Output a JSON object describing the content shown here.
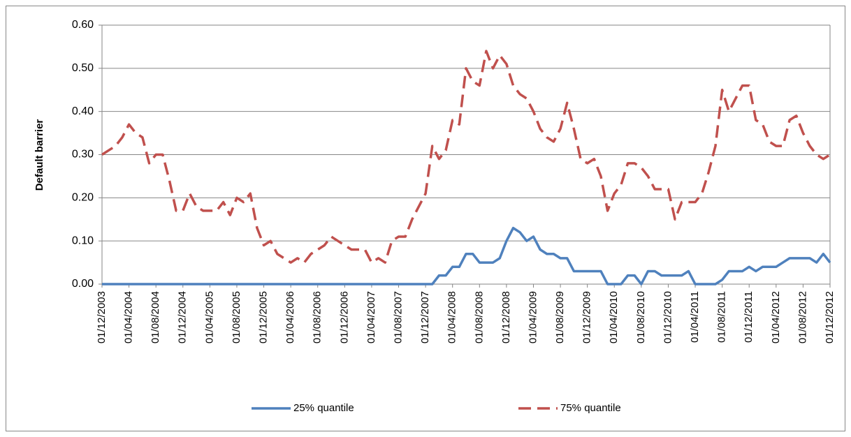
{
  "chart_data": {
    "type": "line",
    "y_label": "Default barrier",
    "categories": [
      "01/12/2003",
      null,
      null,
      null,
      "01/04/2004",
      null,
      null,
      null,
      "01/08/2004",
      null,
      null,
      null,
      "01/12/2004",
      null,
      null,
      null,
      "01/04/2005",
      null,
      null,
      null,
      "01/08/2005",
      null,
      null,
      null,
      "01/12/2005",
      null,
      null,
      null,
      "01/04/2006",
      null,
      null,
      null,
      "01/08/2006",
      null,
      null,
      null,
      "01/12/2006",
      null,
      null,
      null,
      "01/04/2007",
      null,
      null,
      null,
      "01/08/2007",
      null,
      null,
      null,
      "01/12/2007",
      null,
      null,
      null,
      "01/04/2008",
      null,
      null,
      null,
      "01/08/2008",
      null,
      null,
      null,
      "01/12/2008",
      null,
      null,
      null,
      "01/04/2009",
      null,
      null,
      null,
      "01/08/2009",
      null,
      null,
      null,
      "01/12/2009",
      null,
      null,
      null,
      "01/04/2010",
      null,
      null,
      null,
      "01/08/2010",
      null,
      null,
      null,
      "01/12/2010",
      null,
      null,
      null,
      "01/04/2011",
      null,
      null,
      null,
      "01/08/2011",
      null,
      null,
      null,
      "01/12/2011",
      null,
      null,
      null,
      "01/04/2012",
      null,
      null,
      null,
      "01/08/2012",
      null,
      null,
      null,
      "01/12/2012"
    ],
    "series": [
      {
        "name": "25% quantile",
        "color": "#4f81bd",
        "dash": false,
        "values": [
          0,
          0,
          0,
          0,
          0,
          0,
          0,
          0,
          0,
          0,
          0,
          0,
          0,
          0,
          0,
          0,
          0,
          0,
          0,
          0,
          0,
          0,
          0,
          0,
          0,
          0,
          0,
          0,
          0,
          0,
          0,
          0,
          0,
          0,
          0,
          0,
          0,
          0,
          0,
          0,
          0,
          0,
          0,
          0,
          0,
          0,
          0,
          0,
          0,
          0,
          0.02,
          0.02,
          0.04,
          0.04,
          0.07,
          0.07,
          0.05,
          0.05,
          0.05,
          0.06,
          0.1,
          0.13,
          0.12,
          0.1,
          0.11,
          0.08,
          0.07,
          0.07,
          0.06,
          0.06,
          0.03,
          0.03,
          0.03,
          0.03,
          0.03,
          0,
          0,
          0,
          0.02,
          0.02,
          0,
          0.03,
          0.03,
          0.02,
          0.02,
          0.02,
          0.02,
          0.03,
          0,
          0,
          0,
          0,
          0.01,
          0.03,
          0.03,
          0.03,
          0.04,
          0.03,
          0.04,
          0.04,
          0.04,
          0.05,
          0.06,
          0.06,
          0.06,
          0.06,
          0.05,
          0.07,
          0.05
        ]
      },
      {
        "name": "75% quantile",
        "color": "#c0504d",
        "dash": true,
        "values": [
          0.3,
          0.31,
          0.32,
          0.34,
          0.37,
          0.35,
          0.34,
          0.28,
          0.3,
          0.3,
          0.24,
          0.17,
          0.17,
          0.21,
          0.18,
          0.17,
          0.17,
          0.17,
          0.19,
          0.16,
          0.2,
          0.19,
          0.21,
          0.13,
          0.09,
          0.1,
          0.07,
          0.06,
          0.05,
          0.06,
          0.05,
          0.07,
          0.08,
          0.09,
          0.11,
          0.1,
          0.09,
          0.08,
          0.08,
          0.08,
          0.05,
          0.06,
          0.05,
          0.1,
          0.11,
          0.11,
          0.15,
          0.18,
          0.21,
          0.32,
          0.29,
          0.31,
          0.38,
          0.37,
          0.5,
          0.47,
          0.46,
          0.54,
          0.5,
          0.53,
          0.51,
          0.46,
          0.44,
          0.43,
          0.4,
          0.36,
          0.34,
          0.33,
          0.36,
          0.42,
          0.36,
          0.29,
          0.28,
          0.29,
          0.25,
          0.17,
          0.21,
          0.23,
          0.28,
          0.28,
          0.27,
          0.25,
          0.22,
          0.22,
          0.22,
          0.15,
          0.19,
          0.19,
          0.19,
          0.21,
          0.26,
          0.32,
          0.45,
          0.4,
          0.43,
          0.46,
          0.46,
          0.38,
          0.37,
          0.33,
          0.32,
          0.32,
          0.38,
          0.39,
          0.35,
          0.32,
          0.3,
          0.29,
          0.3
        ]
      }
    ],
    "ylim": [
      0,
      0.6
    ],
    "yticks": [
      {
        "value": 0,
        "label": "0.00"
      },
      {
        "value": 0.1,
        "label": "0.10"
      },
      {
        "value": 0.2,
        "label": "0.20"
      },
      {
        "value": 0.3,
        "label": "0.30"
      },
      {
        "value": 0.4,
        "label": "0.40"
      },
      {
        "value": 0.5,
        "label": "0.50"
      },
      {
        "value": 0.6,
        "label": "0.60"
      }
    ],
    "grid": true
  }
}
